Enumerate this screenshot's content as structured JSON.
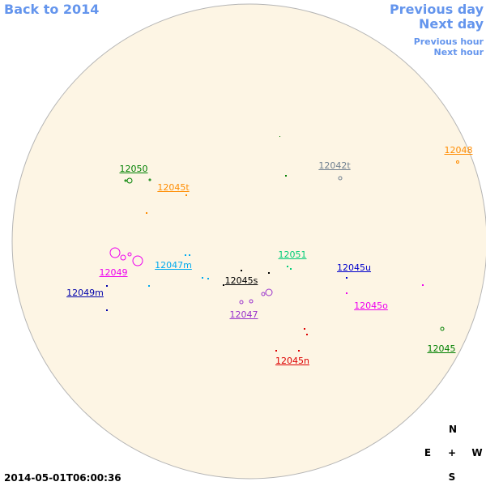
{
  "nav": {
    "back": "Back to 2014",
    "previous_day": "Previous day",
    "next_day": "Next day",
    "previous_hour": "Previous hour",
    "next_hour": "Next hour"
  },
  "regions": [
    "12050",
    "12045t",
    "12042t",
    "12048",
    "12051",
    "12047m",
    "12049",
    "12045s",
    "12045u",
    "12049m",
    "12047",
    "12045o",
    "12045",
    "12045n"
  ],
  "timestamp": "2014-05-01T06:00:36",
  "compass": {
    "north": "N",
    "east": "E",
    "center": "+",
    "west": "W",
    "south": "S"
  }
}
